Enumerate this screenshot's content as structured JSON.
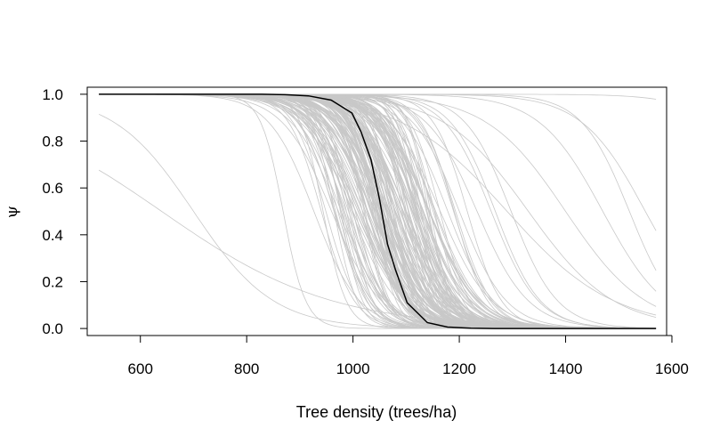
{
  "chart_data": {
    "type": "line",
    "title": "",
    "xlabel": "Tree density (trees/ha)",
    "ylabel": "ψ",
    "xlim": [
      500,
      1590
    ],
    "ylim": [
      -0.03,
      1.03
    ],
    "x_range": [
      522,
      1570
    ],
    "x_ticks": [
      600,
      800,
      1000,
      1200,
      1400,
      1600
    ],
    "y_ticks": [
      0.0,
      0.2,
      0.4,
      0.6,
      0.8,
      1.0
    ],
    "y_tick_labels": [
      "0.0",
      "0.2",
      "0.4",
      "0.6",
      "0.8",
      "1.0"
    ],
    "grid": false,
    "legend": "none",
    "colors": {
      "draws": "#c8c8c8",
      "mean": "#000000"
    },
    "series": [
      {
        "role": "mean",
        "x": [
          522,
          566,
          609,
          653,
          697,
          741,
          784,
          828,
          872,
          916,
          959,
          998,
          1015,
          1034,
          1050,
          1065,
          1080,
          1102,
          1140,
          1178,
          1222,
          1266,
          1310,
          1354,
          1397,
          1441,
          1485,
          1528,
          1570
        ],
        "values": [
          1.0,
          1.0,
          1.0,
          1.0,
          1.0,
          1.0,
          1.0,
          1.0,
          0.998,
          0.993,
          0.975,
          0.92,
          0.84,
          0.72,
          0.55,
          0.36,
          0.25,
          0.11,
          0.025,
          0.006,
          0.001,
          0.0,
          0.0,
          0.0,
          0.0,
          0.0,
          0.0,
          0.0,
          0.0
        ]
      },
      {
        "role": "posterior-draws",
        "count": 180,
        "description_of_distribution": "logistic decreasing curves, midpoints mostly 930-1200",
        "outlier_curves": [
          {
            "midpoint": 700,
            "scale": 75
          },
          {
            "midpoint": 640,
            "scale": 160
          },
          {
            "midpoint": 1550,
            "scale": 60
          },
          {
            "midpoint": 1520,
            "scale": 45
          },
          {
            "midpoint": 1470,
            "scale": 60
          },
          {
            "midpoint": 1400,
            "scale": 75
          },
          {
            "midpoint": 1330,
            "scale": 80
          },
          {
            "midpoint": 1290,
            "scale": 100
          },
          {
            "midpoint": 1800,
            "scale": 60
          }
        ]
      }
    ]
  }
}
